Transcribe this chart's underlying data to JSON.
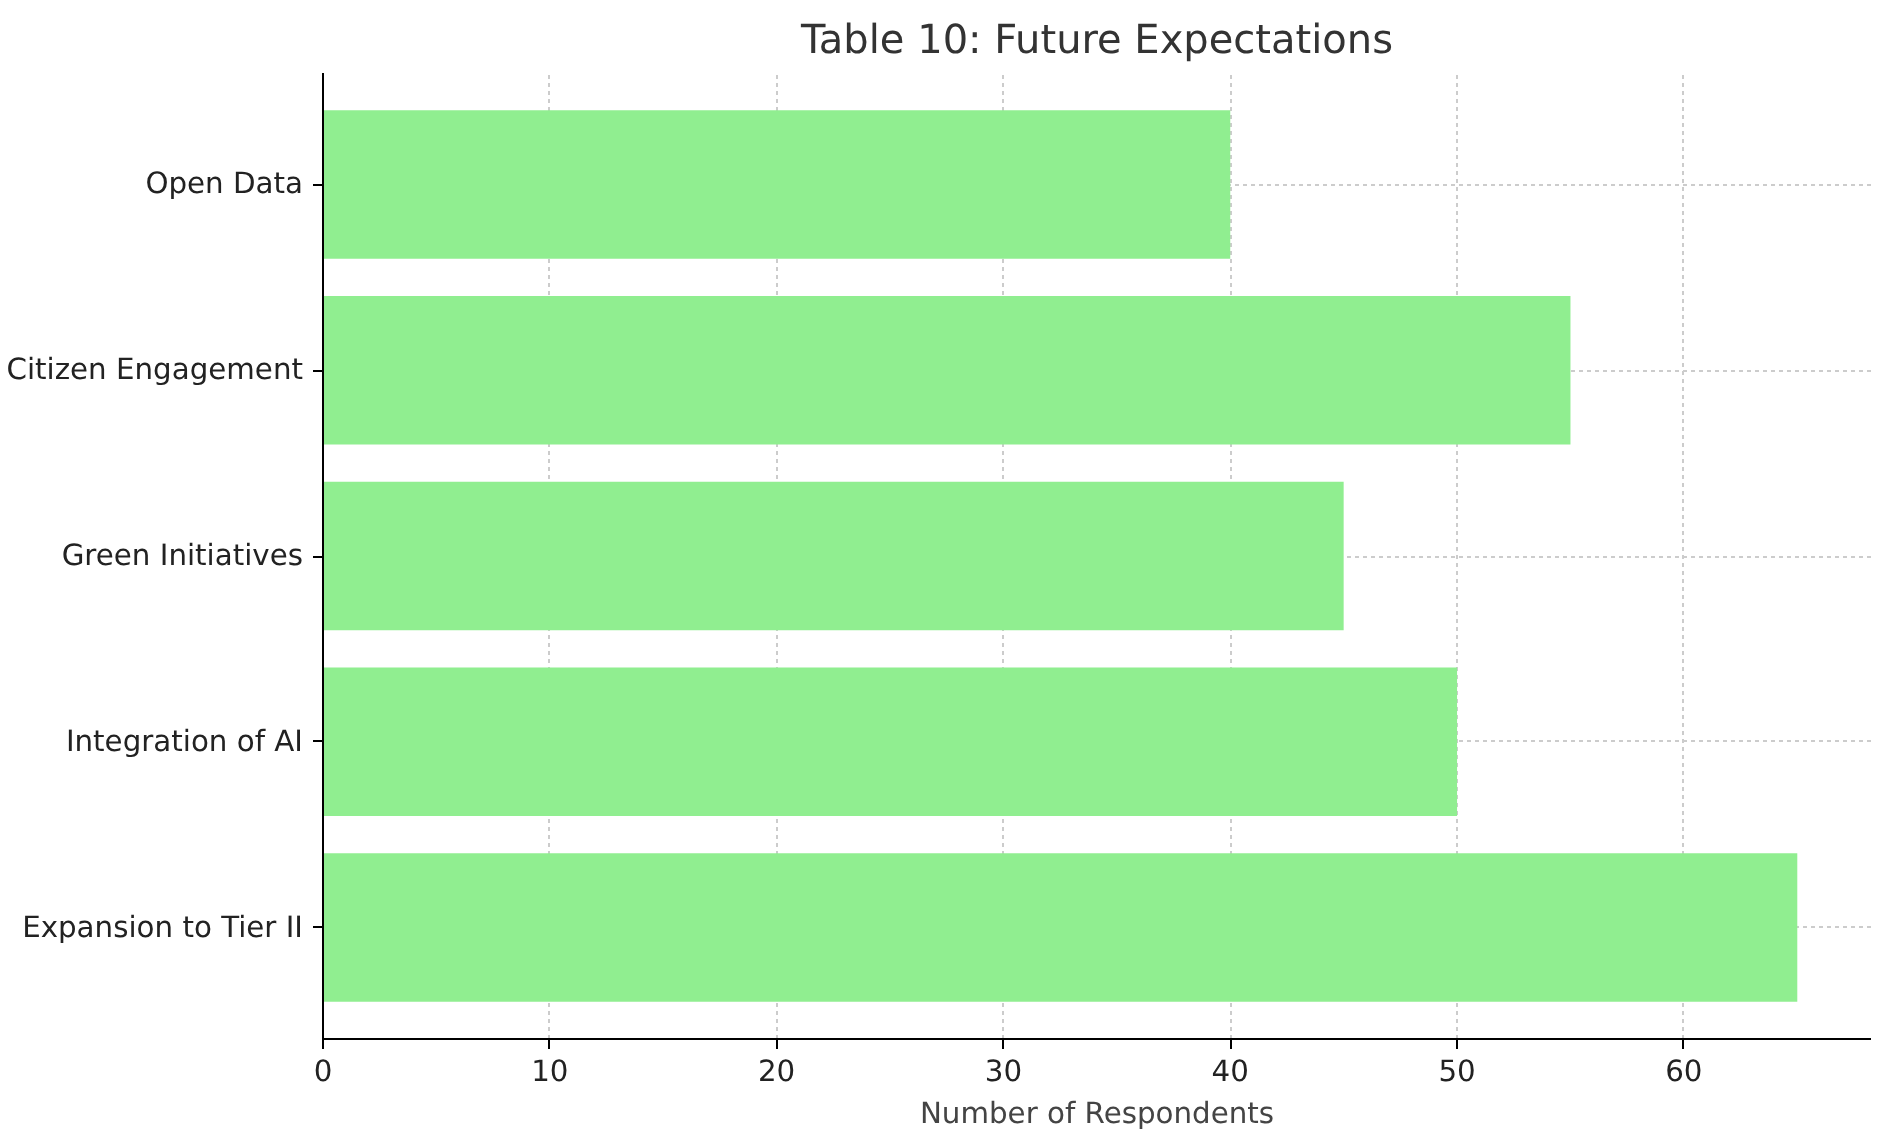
{
  "chart_data": {
    "type": "bar",
    "orientation": "horizontal",
    "title": "Table 10: Future Expectations",
    "xlabel": "Number of Respondents",
    "categories": [
      "Open Data",
      "Citizen Engagement",
      "Green Initiatives",
      "Integration of AI",
      "Expansion to Tier II"
    ],
    "values": [
      40,
      55,
      45,
      50,
      65
    ],
    "color": "#90ee90",
    "xlim": [
      0,
      68.25
    ],
    "xticks": [
      0,
      10,
      20,
      30,
      40,
      50,
      60
    ],
    "grid": true
  }
}
